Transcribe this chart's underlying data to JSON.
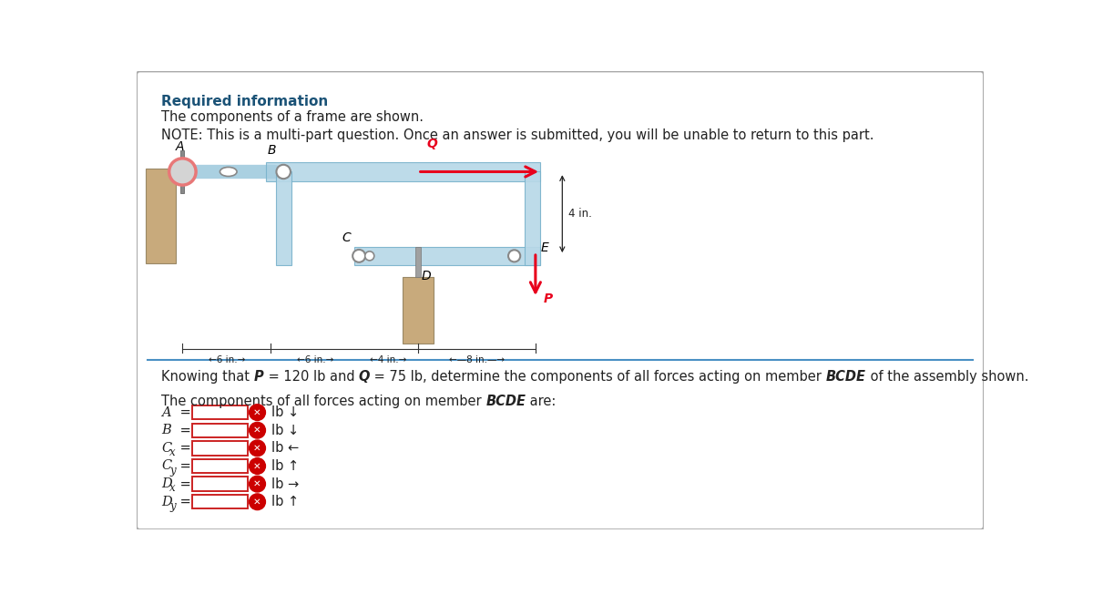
{
  "bg_color": "#ffffff",
  "header_text": "Required information",
  "header_color": "#1a5276",
  "line1": "The components of a frame are shown.",
  "line2": "NOTE: This is a multi-part question. Once an answer is submitted, you will be unable to return to this part.",
  "question_line": "Knowing that P = 120 lb and Q = 75 lb, determine the components of all forces acting on member BCDE of the assembly shown.",
  "answer_intro": "The components of all forces acting on member BCDE are:",
  "row_labels_main": [
    "A",
    "B",
    "C",
    "C",
    "D",
    "D"
  ],
  "row_subs": [
    "",
    "",
    "x",
    "y",
    "x",
    "y"
  ],
  "row_units": [
    "lb ↓",
    "lb ↓",
    "lb ←",
    "lb ↑",
    "lb →",
    "lb ↑"
  ],
  "light_blue_frame": "#b8d8e8",
  "blue_frame_edge": "#7ab3cc",
  "tan_color": "#c8aa7c",
  "red_arrow": "#e8001c",
  "pink_circle": "#e87878",
  "divider_color": "#4a90c4",
  "box_border": "#cc2222",
  "xcircle_color": "#cc0000"
}
